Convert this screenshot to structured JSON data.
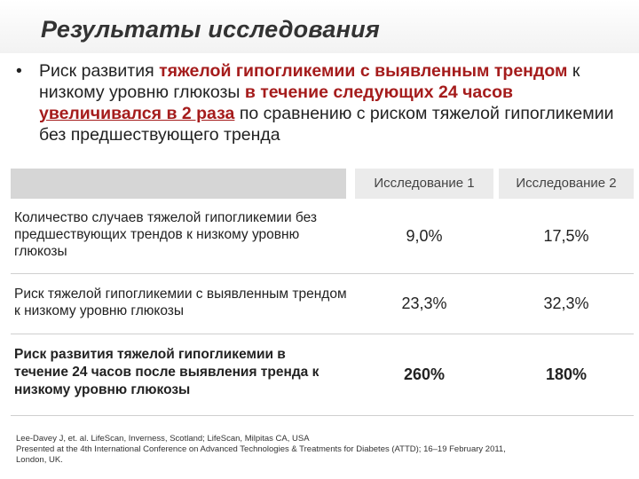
{
  "title": "Результаты исследования",
  "bullet": {
    "marker": "•",
    "t1": "Риск развития ",
    "h1": "тяжелой гипогликемии с выявленным трендом",
    "t2": " к низкому уровню глюкозы ",
    "h2": "в течение следующих 24 часов",
    "t3": " ",
    "h3": "увеличивался в 2 раза",
    "t4": " по сравнению с риском тяжелой гипогликемии без предшествующего тренда"
  },
  "table": {
    "headers": [
      "Исследование 1",
      "Исследование 2"
    ],
    "rows": [
      {
        "label": "Количество случаев тяжелой гипогликемии без предшествующих трендов к низкому уровню глюкозы",
        "v1": "9,0%",
        "v2": "17,5%"
      },
      {
        "label": "Риск тяжелой гипогликемии с выявленным трендом к низкому уровню глюкозы",
        "v1": "23,3%",
        "v2": "32,3%"
      },
      {
        "label": "Риск развития тяжелой гипогликемии в течение 24 часов после выявления тренда к низкому уровню глюкозы",
        "v1": "260%",
        "v2": "180%"
      }
    ]
  },
  "references": {
    "line1": "Lee-Davey J, et. al. LifeScan, Inverness, Scotland; LifeScan, Milpitas CA, USA",
    "line2": "Presented at the 4th International Conference on Advanced Technologies & Treatments for Diabetes (ATTD); 16–19 February 2011, London, UK."
  }
}
